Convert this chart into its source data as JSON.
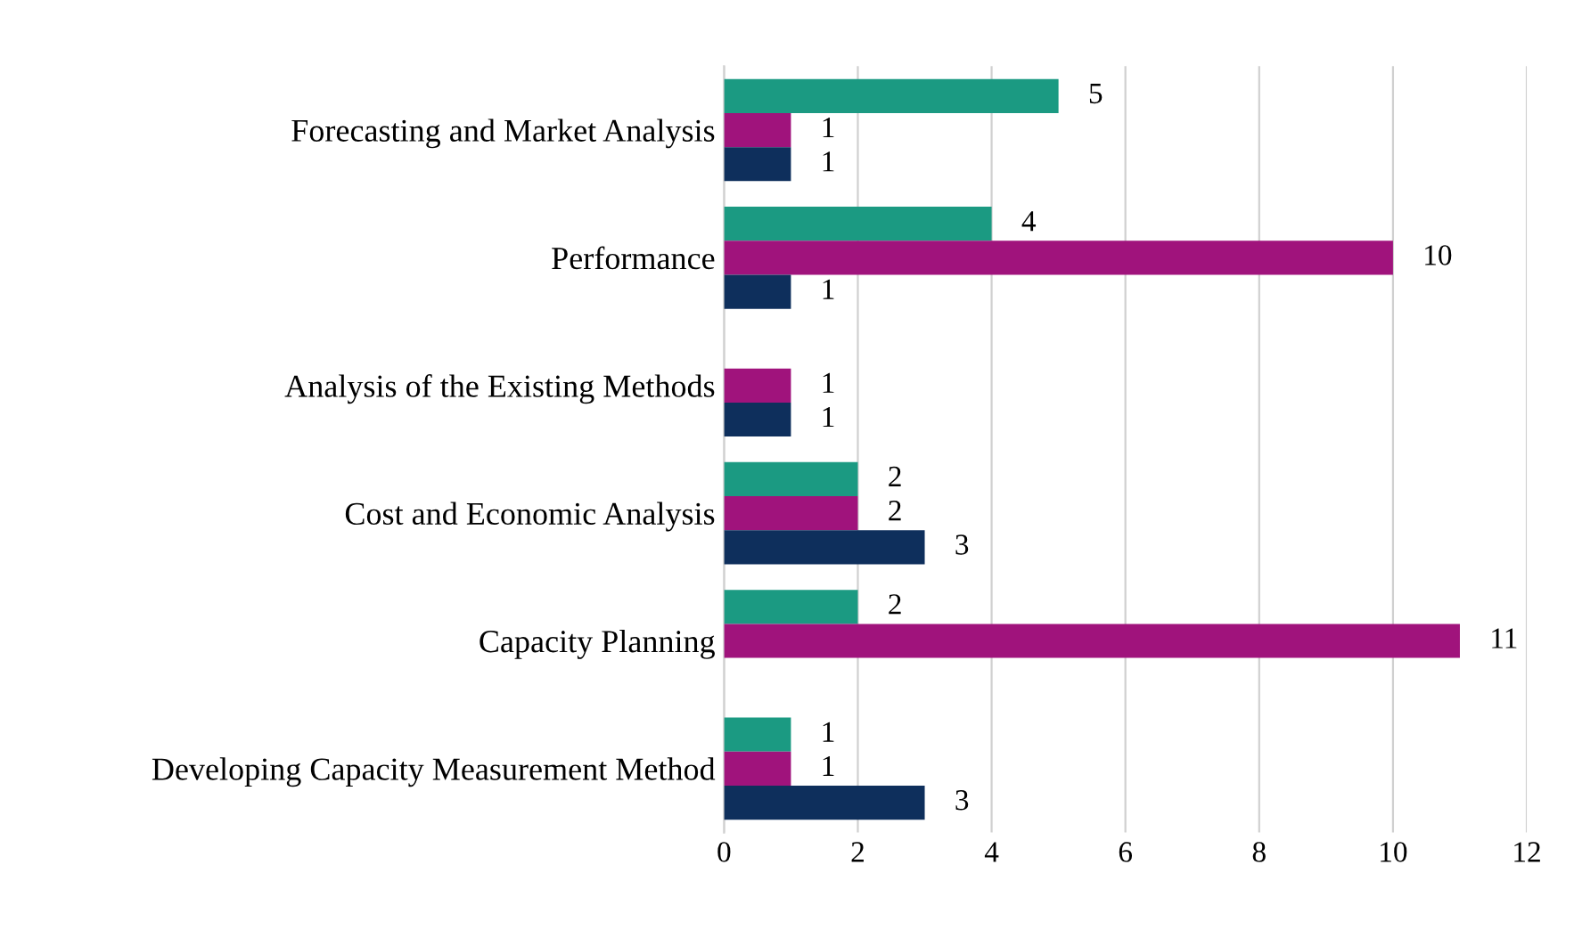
{
  "chart_data": {
    "type": "bar",
    "orientation": "horizontal",
    "categories": [
      "Forecasting and Market Analysis",
      "Performance",
      "Analysis of the Existing Methods",
      "Cost and Economic Analysis",
      "Capacity Planning",
      "Developing Capacity Measurement Method"
    ],
    "series": [
      {
        "color": "#1b9a82",
        "values": [
          5,
          4,
          null,
          2,
          2,
          1
        ]
      },
      {
        "color": "#a0137c",
        "values": [
          1,
          10,
          1,
          2,
          11,
          1
        ]
      },
      {
        "color": "#0e2f5c",
        "values": [
          1,
          1,
          1,
          3,
          null,
          3
        ]
      }
    ],
    "xlim": [
      0,
      12
    ],
    "xticks": [
      0,
      2,
      4,
      6,
      8,
      10,
      12
    ],
    "grid": "x",
    "data_labels": true
  }
}
